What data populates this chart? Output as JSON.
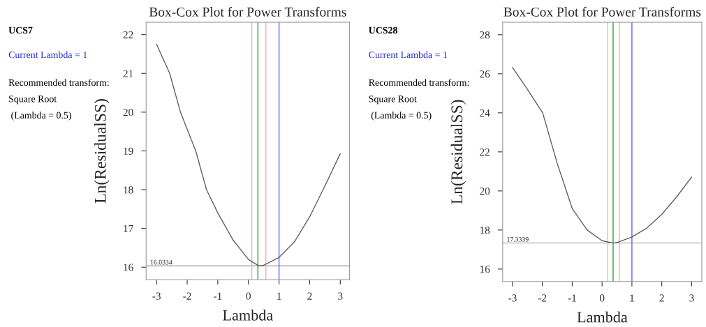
{
  "chart_data": [
    {
      "type": "line",
      "title": "Box-Cox Plot for Power Transforms",
      "xlabel": "Lambda",
      "ylabel": "Ln(ResidualSS)",
      "x": [
        -3,
        -2.57,
        -2.22,
        -1.72,
        -1.37,
        -1,
        -0.5,
        0,
        0.35,
        0.5,
        1,
        1.5,
        2,
        2.5,
        3
      ],
      "series": [
        {
          "color": "#606060",
          "values": [
            21.75,
            21,
            20,
            19,
            18,
            17.4,
            16.7,
            16.2,
            16.03,
            16.05,
            16.25,
            16.65,
            17.3,
            18.1,
            18.93
          ]
        }
      ],
      "xlim": [
        -3.34,
        3.3
      ],
      "xticks": [
        -3,
        -2,
        -1,
        0,
        1,
        2,
        3
      ],
      "ylim": [
        15.68,
        22.32
      ],
      "yticks": [
        16,
        17,
        18,
        19,
        20,
        21,
        22
      ],
      "ref_lines": [
        {
          "axis": "y",
          "value": 16.0334,
          "label": "16.0334",
          "color": "#909090"
        },
        {
          "axis": "x",
          "value": 0.31,
          "color": "#2ca02c"
        },
        {
          "axis": "x",
          "value": 0.11,
          "color": "#f0b0b0"
        },
        {
          "axis": "x",
          "value": 0.57,
          "color": "#f0b0b0"
        },
        {
          "axis": "x",
          "value": 1,
          "color": "#6060ff"
        }
      ],
      "annotations": [
        "UCS7",
        "Current Lambda = 1",
        "Recommended transform:",
        "Square Root",
        " (Lambda = 0.5)"
      ],
      "grid": false,
      "legend": false
    },
    {
      "type": "line",
      "title": "Box-Cox Plot for Power Transforms",
      "xlabel": "Lambda",
      "ylabel": "Ln(ResidualSS)",
      "x": [
        -3,
        -2.5,
        -1.99,
        -1.5,
        -1,
        -0.5,
        0,
        0.37,
        0.5,
        1,
        1.5,
        2,
        2.5,
        3
      ],
      "series": [
        {
          "color": "#606060",
          "values": [
            26.32,
            25.2,
            24,
            21.4,
            19.1,
            18,
            17.45,
            17.33,
            17.36,
            17.64,
            18.1,
            18.8,
            19.7,
            20.71
          ]
        }
      ],
      "xlim": [
        -3.33,
        3.34
      ],
      "xticks": [
        -3,
        -2,
        -1,
        0,
        1,
        2,
        3
      ],
      "ylim": [
        15.36,
        28.64
      ],
      "yticks": [
        16,
        18,
        20,
        22,
        24,
        26,
        28
      ],
      "ref_lines": [
        {
          "axis": "y",
          "value": 17.3339,
          "label": "17.3339",
          "color": "#909090"
        },
        {
          "axis": "x",
          "value": 0.37,
          "color": "#2ca02c"
        },
        {
          "axis": "x",
          "value": 0.19,
          "color": "#f0b0b0"
        },
        {
          "axis": "x",
          "value": 0.58,
          "color": "#f0b0b0"
        },
        {
          "axis": "x",
          "value": 1,
          "color": "#6060ff"
        }
      ],
      "annotations": [
        "UCS28",
        "Current Lambda = 1",
        "Recommended transform:",
        "Square Root",
        " (Lambda = 0.5)"
      ],
      "grid": false,
      "legend": false
    }
  ]
}
